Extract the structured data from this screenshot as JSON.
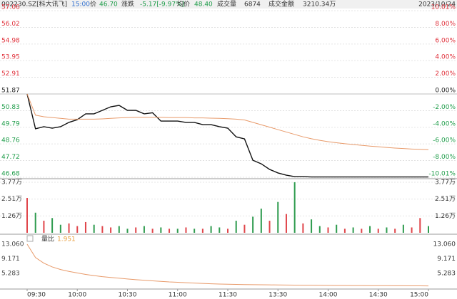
{
  "header": {
    "symbol": "002230.SZ[科大讯飞]",
    "time": "15:00",
    "price_label": "价",
    "price": "46.70",
    "change_label": "涨跌",
    "change": "-5.17[-9.97%]",
    "avg_label": "均价",
    "avg": "48.40",
    "volume_label": "成交量",
    "volume": "6874",
    "amount_label": "成交金额",
    "amount": "3210.34万",
    "date": "2023/10/24"
  },
  "chart_data": [
    {
      "type": "line",
      "grid": true,
      "x": [
        0,
        5,
        10,
        15,
        20,
        25,
        30,
        35,
        40,
        45,
        50,
        55,
        60,
        65,
        70,
        75,
        80,
        85,
        90,
        95,
        100,
        105,
        110,
        115,
        120,
        125,
        130,
        135,
        140,
        145,
        150,
        155,
        160,
        165,
        170,
        175,
        180,
        185,
        190,
        195,
        200,
        205,
        210,
        215,
        220,
        225,
        230,
        235,
        240
      ],
      "xlim": [
        0,
        240
      ],
      "series": [
        {
          "color": "#111111",
          "values": [
            51.87,
            49.7,
            49.83,
            49.74,
            49.83,
            50.1,
            50.27,
            50.63,
            50.63,
            50.85,
            51.07,
            51.16,
            50.85,
            50.85,
            50.63,
            50.7,
            50.18,
            50.18,
            50.18,
            50.1,
            50.1,
            49.96,
            49.96,
            49.83,
            49.74,
            49.2,
            49.07,
            47.74,
            47.52,
            47.17,
            46.95,
            46.81,
            46.72,
            46.72,
            46.7,
            46.7,
            46.7,
            46.7,
            46.7,
            46.7,
            46.7,
            46.7,
            46.7,
            46.7,
            46.7,
            46.7,
            46.7,
            46.7,
            46.7
          ]
        },
        {
          "color": "#e89a6a",
          "values": [
            51.87,
            50.55,
            50.45,
            50.4,
            50.35,
            50.3,
            50.3,
            50.3,
            50.3,
            50.32,
            50.35,
            50.38,
            50.4,
            50.42,
            50.42,
            50.42,
            50.42,
            50.4,
            50.4,
            50.4,
            50.38,
            50.38,
            50.36,
            50.35,
            50.33,
            50.3,
            50.25,
            50.1,
            49.95,
            49.8,
            49.65,
            49.5,
            49.35,
            49.2,
            49.08,
            48.98,
            48.9,
            48.83,
            48.77,
            48.72,
            48.67,
            48.62,
            48.58,
            48.54,
            48.5,
            48.47,
            48.44,
            48.42,
            48.4
          ]
        }
      ],
      "ylim": [
        46.68,
        57.06
      ],
      "yticks": [
        57.06,
        56.02,
        54.98,
        53.95,
        52.91,
        51.87,
        50.83,
        49.79,
        48.76,
        47.72,
        46.68
      ],
      "y2lim": [
        -10.01,
        10.01
      ],
      "y2ticks": [
        {
          "value": 10.01,
          "label": "10.01%"
        },
        {
          "value": 8,
          "label": "8.00%"
        },
        {
          "value": 6,
          "label": "6.00%"
        },
        {
          "value": 4,
          "label": "4.00%"
        },
        {
          "value": 2,
          "label": "2.00%"
        },
        {
          "value": 0,
          "label": "0.00%"
        },
        {
          "value": -2,
          "label": "-2.00%"
        },
        {
          "value": -4,
          "label": "-4.00%"
        },
        {
          "value": -6,
          "label": "-6.00%"
        },
        {
          "value": -8,
          "label": "-8.00%"
        },
        {
          "value": -10.01,
          "label": "-10.01%"
        }
      ]
    },
    {
      "type": "bar",
      "grid": true,
      "x": [
        0,
        5,
        10,
        15,
        20,
        25,
        30,
        35,
        40,
        45,
        50,
        55,
        60,
        65,
        70,
        75,
        80,
        85,
        90,
        95,
        100,
        105,
        110,
        115,
        120,
        125,
        130,
        135,
        140,
        145,
        150,
        155,
        160,
        165,
        170,
        175,
        180,
        185,
        190,
        195,
        200,
        205,
        210,
        215,
        220,
        225,
        230,
        235,
        240
      ],
      "xlim": [
        0,
        240
      ],
      "values": [
        2.6,
        1.5,
        0.9,
        1.1,
        0.6,
        0.7,
        0.5,
        0.8,
        0.6,
        0.5,
        0.4,
        0.5,
        0.3,
        0.4,
        0.5,
        0.3,
        0.4,
        0.3,
        0.3,
        0.4,
        0.3,
        0.3,
        0.5,
        0.4,
        0.3,
        0.9,
        0.6,
        1.2,
        1.8,
        0.9,
        2.3,
        1.4,
        3.77,
        0.7,
        1.0,
        0.5,
        0.4,
        0.6,
        0.3,
        0.4,
        0.3,
        0.5,
        0.3,
        0.4,
        0.3,
        0.6,
        0.4,
        1.1,
        0.5
      ],
      "colors": [
        "#e0454a",
        "#2e9b4e",
        "#e0454a",
        "#2e9b4e",
        "#2e9b4e",
        "#e0454a",
        "#e0454a",
        "#e0454a",
        "#2e9b4e",
        "#e0454a",
        "#e0454a",
        "#2e9b4e",
        "#2e9b4e",
        "#e0454a",
        "#2e9b4e",
        "#e0454a",
        "#2e9b4e",
        "#e0454a",
        "#2e9b4e",
        "#e0454a",
        "#2e9b4e",
        "#e0454a",
        "#2e9b4e",
        "#2e9b4e",
        "#e0454a",
        "#2e9b4e",
        "#e0454a",
        "#2e9b4e",
        "#2e9b4e",
        "#e0454a",
        "#2e9b4e",
        "#e0454a",
        "#2e9b4e",
        "#e0454a",
        "#2e9b4e",
        "#2e9b4e",
        "#e0454a",
        "#2e9b4e",
        "#e0454a",
        "#2e9b4e",
        "#e0454a",
        "#2e9b4e",
        "#e0454a",
        "#2e9b4e",
        "#e0454a",
        "#2e9b4e",
        "#e0454a",
        "#e0454a",
        "#2e9b4e"
      ],
      "ylim": [
        0,
        3.77
      ],
      "yticks": [
        {
          "value": 3.77,
          "label": "3.77万"
        },
        {
          "value": 2.51,
          "label": "2.51万"
        },
        {
          "value": 1.26,
          "label": "1.26万"
        }
      ]
    },
    {
      "type": "line",
      "grid": false,
      "title": "量比",
      "current": "1.951",
      "x": [
        0,
        5,
        10,
        15,
        20,
        25,
        30,
        35,
        40,
        45,
        50,
        55,
        60,
        65,
        70,
        75,
        80,
        85,
        90,
        95,
        100,
        105,
        110,
        115,
        120,
        125,
        130,
        135,
        140,
        145,
        150,
        155,
        160,
        165,
        170,
        175,
        180,
        185,
        190,
        195,
        200,
        205,
        210,
        215,
        220,
        225,
        230,
        235,
        240
      ],
      "xlim": [
        0,
        240
      ],
      "xticks": [
        {
          "value": 0,
          "label": "09:30"
        },
        {
          "value": 30,
          "label": "10:00"
        },
        {
          "value": 60,
          "label": "10:30"
        },
        {
          "value": 90,
          "label": "11:00"
        },
        {
          "value": 120,
          "label": "11:30"
        },
        {
          "value": 150,
          "label": "13:30"
        },
        {
          "value": 180,
          "label": "14:00"
        },
        {
          "value": 210,
          "label": "14:30"
        },
        {
          "value": 240,
          "label": "15:00"
        }
      ],
      "series": [
        {
          "color": "#e89a6a",
          "values": [
            13.06,
            9.5,
            8.0,
            7.0,
            6.3,
            5.8,
            5.4,
            5.0,
            4.7,
            4.4,
            4.2,
            4.0,
            3.8,
            3.6,
            3.45,
            3.3,
            3.15,
            3.0,
            2.9,
            2.8,
            2.7,
            2.6,
            2.5,
            2.45,
            2.4,
            2.35,
            2.3,
            2.28,
            2.25,
            2.22,
            2.2,
            2.18,
            2.16,
            2.14,
            2.12,
            2.1,
            2.08,
            2.06,
            2.05,
            2.04,
            2.03,
            2.02,
            2.01,
            2.0,
            1.99,
            1.98,
            1.97,
            1.96,
            1.951
          ]
        }
      ],
      "ylim": [
        1.3,
        13.06
      ],
      "yticks": [
        {
          "value": 13.06,
          "label": "13.060"
        },
        {
          "value": 9.171,
          "label": "9.171"
        },
        {
          "value": 5.283,
          "label": "5.283"
        }
      ]
    }
  ]
}
